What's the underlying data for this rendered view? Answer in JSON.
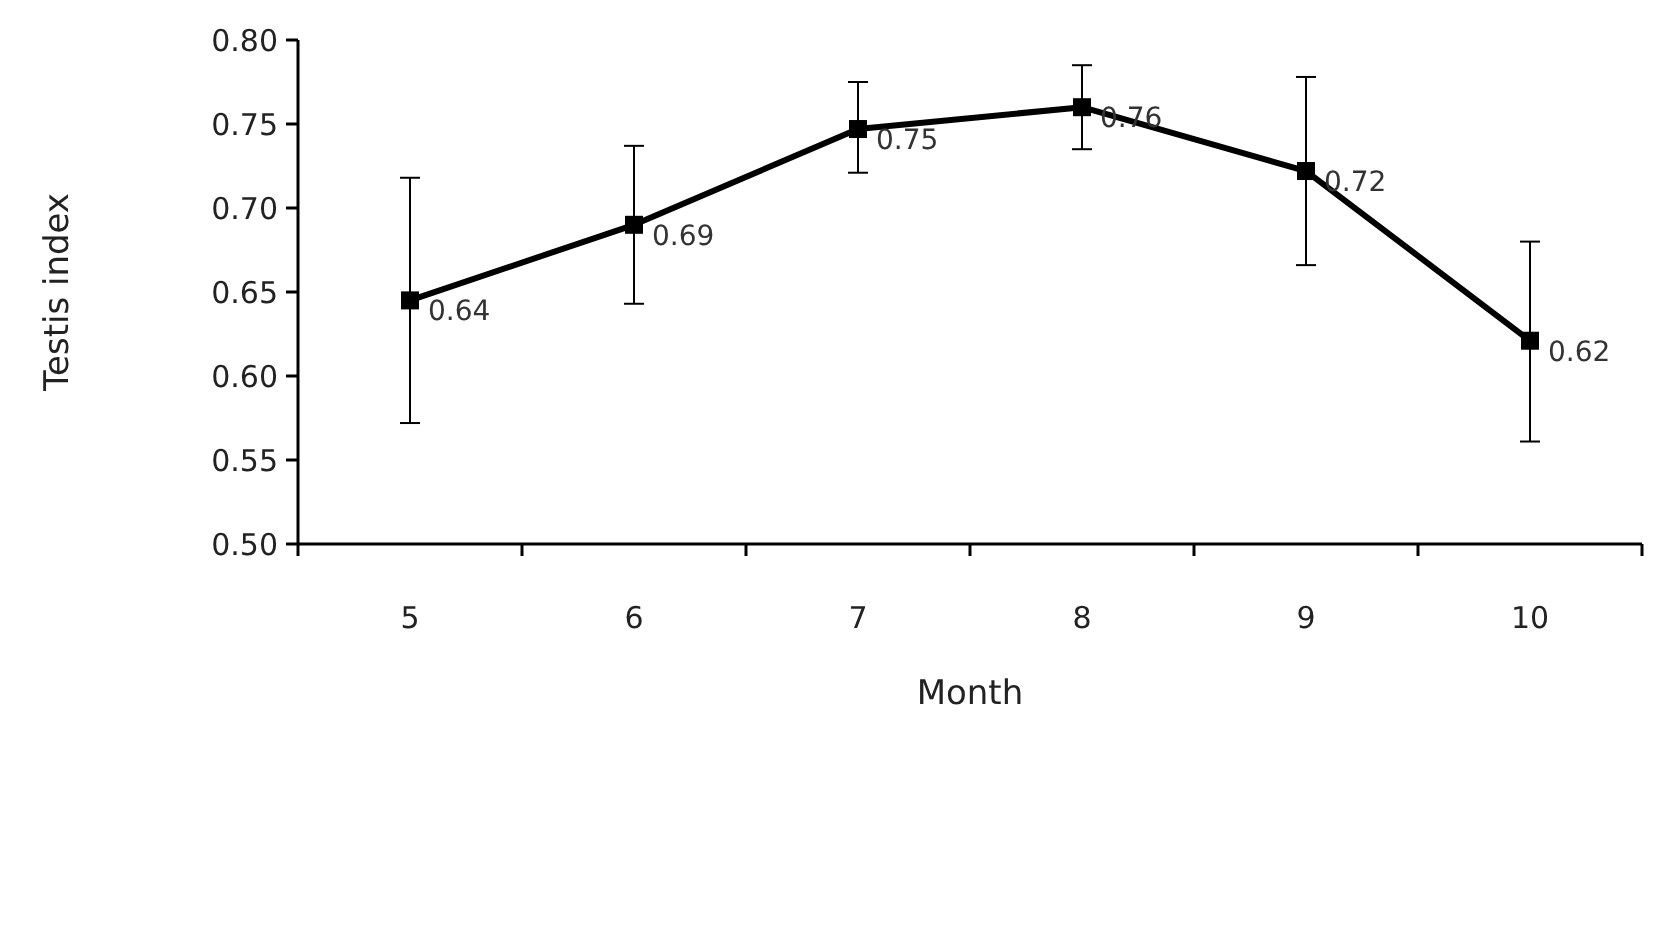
{
  "chart_data": {
    "type": "line",
    "xlabel": "Month",
    "ylabel": "Testis index",
    "categories": [
      "5",
      "6",
      "7",
      "8",
      "9",
      "10"
    ],
    "series": [
      {
        "color": "#000000",
        "values": [
          0.645,
          0.69,
          0.747,
          0.76,
          0.722,
          0.621
        ],
        "value_labels": [
          "0.64",
          "0.69",
          "0.75",
          "0.76",
          "0.72",
          "0.62"
        ],
        "errors": [
          [
            0.572,
            0.718
          ],
          [
            0.643,
            0.737
          ],
          [
            0.721,
            0.775
          ],
          [
            0.735,
            0.785
          ],
          [
            0.666,
            0.778
          ],
          [
            0.561,
            0.68
          ]
        ]
      }
    ],
    "ylim": [
      0.5,
      0.8
    ],
    "yticks": [
      {
        "value": 0.5,
        "label": "0.50"
      },
      {
        "value": 0.55,
        "label": "0.55"
      },
      {
        "value": 0.6,
        "label": "0.60"
      },
      {
        "value": 0.65,
        "label": "0.65"
      },
      {
        "value": 0.7,
        "label": "0.70"
      },
      {
        "value": 0.75,
        "label": "0.75"
      },
      {
        "value": 0.8,
        "label": "0.80"
      }
    ],
    "grid": false,
    "marker": "square",
    "line_style": "solid"
  }
}
